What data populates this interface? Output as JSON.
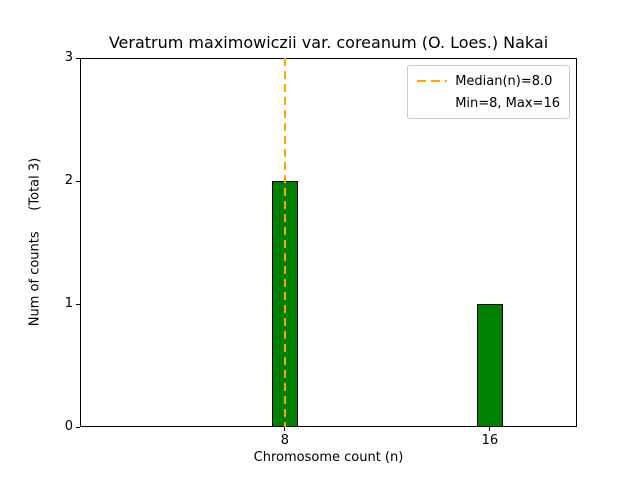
{
  "chart_data": {
    "type": "bar",
    "title": "Veratrum maximowiczii var. coreanum (O. Loes.) Nakai",
    "xlabel": "Chromosome count (n)",
    "ylabel": "Num of counts     (Total 3)",
    "categories": [
      8,
      16
    ],
    "values": [
      2,
      1
    ],
    "total_counts": 3,
    "bar_color": "#008000",
    "bar_edge_color": "#000000",
    "bar_width": 1,
    "xlim": [
      0,
      19.4
    ],
    "ylim": [
      0,
      3
    ],
    "xticks": [
      8,
      16
    ],
    "yticks": [
      0,
      1,
      2,
      3
    ],
    "grid": false,
    "median_line": {
      "x": 8,
      "color": "#FFA500",
      "style": "dashed",
      "orientation": "vertical"
    },
    "legend": {
      "position": "upper right",
      "items": [
        {
          "label": "Median(n)=8.0",
          "sample": "dashed-orange-line",
          "color": "#FFA500"
        },
        {
          "label": "Min=8, Max=16",
          "sample": "none"
        }
      ]
    }
  }
}
